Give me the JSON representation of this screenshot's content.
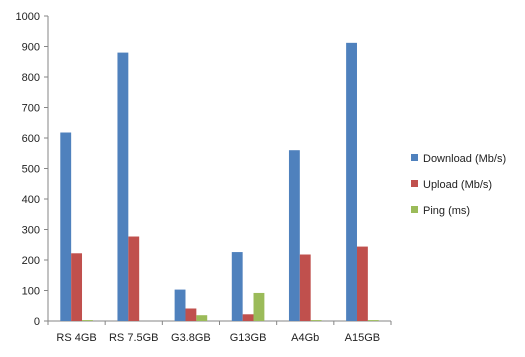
{
  "chart_data": {
    "type": "bar",
    "categories": [
      "RS 4GB",
      "RS 7.5GB",
      "G3.8GB",
      "G13GB",
      "A4Gb",
      "A15GB"
    ],
    "series": [
      {
        "name": "Download (Mb/s)",
        "color": "#4F81BD",
        "values": [
          618,
          880,
          103,
          226,
          560,
          912
        ]
      },
      {
        "name": "Upload (Mb/s)",
        "color": "#C0504D",
        "values": [
          222,
          277,
          41,
          22,
          218,
          244
        ]
      },
      {
        "name": "Ping (ms)",
        "color": "#9BBB59",
        "values": [
          3,
          0,
          19,
          92,
          3,
          3
        ]
      }
    ],
    "y_ticks": [
      "0",
      "100",
      "200",
      "300",
      "400",
      "500",
      "600",
      "700",
      "800",
      "900",
      "1000"
    ],
    "ylim": [
      0,
      1000
    ],
    "grid": false,
    "legend_position": "right"
  }
}
